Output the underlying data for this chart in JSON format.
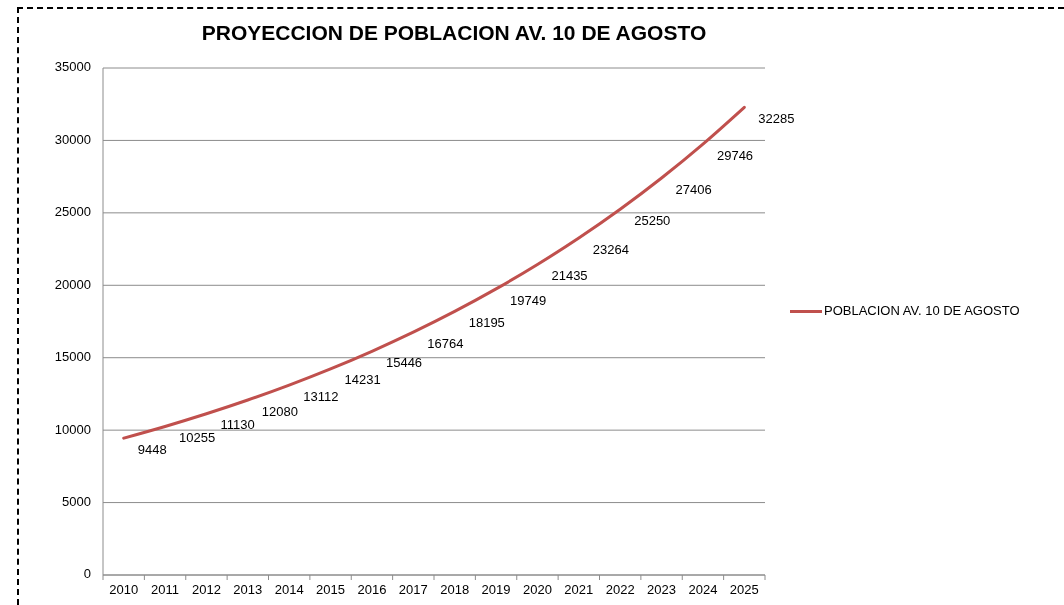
{
  "chart_data": {
    "type": "line",
    "title": "PROYECCION DE POBLACION AV. 10 DE AGOSTO",
    "categories": [
      "2010",
      "2011",
      "2012",
      "2013",
      "2014",
      "2015",
      "2016",
      "2017",
      "2018",
      "2019",
      "2020",
      "2021",
      "2022",
      "2023",
      "2024",
      "2025"
    ],
    "series": [
      {
        "name": "POBLACION AV. 10 DE AGOSTO",
        "color": "#c0504d",
        "values": [
          9448,
          10255,
          11130,
          12080,
          13112,
          14231,
          15446,
          16764,
          18195,
          19749,
          21435,
          23264,
          25250,
          27406,
          29746,
          32285
        ]
      }
    ],
    "ylim": [
      0,
      35000
    ],
    "yticks": [
      0,
      5000,
      10000,
      15000,
      20000,
      25000,
      30000,
      35000
    ],
    "grid": "y",
    "legend": "right",
    "data_labels": true,
    "marker": "none",
    "line_style": "solid"
  }
}
